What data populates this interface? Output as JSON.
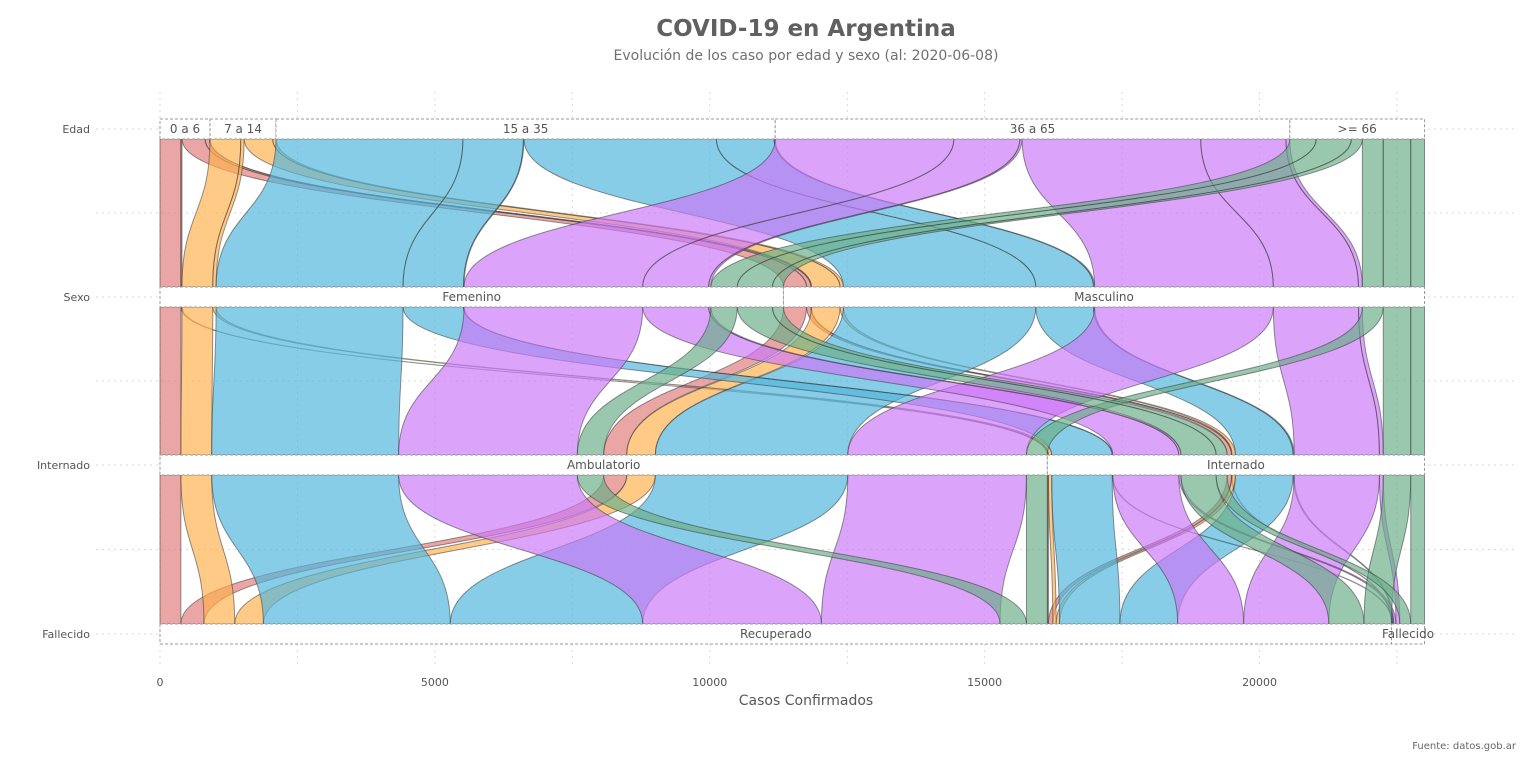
{
  "title": "COVID-19 en Argentina",
  "subtitle": "Evolución de los caso por edad y sexo (al: 2020-06-08)",
  "caption": "Fuente: datos.gob.ar",
  "colors": {
    "0 a 6": "#E07A7A",
    "7 a 14": "#FFB04D",
    "15 a 35": "#4FB6DB",
    "36 a 65": "#CB77F8",
    ">= 66": "#6AAE87"
  },
  "chart_data": {
    "type": "alluvial",
    "xlabel": "Casos Confirmados",
    "xlim": [
      0,
      23500
    ],
    "x_ticks": [
      0,
      5000,
      10000,
      15000,
      20000
    ],
    "axes": [
      "Edad",
      "Sexo",
      "Internado",
      "Fallecido"
    ],
    "axis_categories": {
      "Edad": [
        "0 a 6",
        "7 a 14",
        "15 a 35",
        "36 a 65",
        ">= 66"
      ],
      "Sexo": [
        "Femenino",
        "Masculino"
      ],
      "Internado": [
        "Ambulatorio",
        "Internado"
      ],
      "Fallecido": [
        "Recuperado",
        "Fallecido"
      ]
    },
    "flows": [
      {
        "age": "0 a 6",
        "sex": "Femenino",
        "hosp": "Ambulatorio",
        "death": "Recuperado",
        "value": 380
      },
      {
        "age": "0 a 6",
        "sex": "Masculino",
        "hosp": "Ambulatorio",
        "death": "Recuperado",
        "value": 420
      },
      {
        "age": "0 a 6",
        "sex": "Femenino",
        "hosp": "Internado",
        "death": "Recuperado",
        "value": 20
      },
      {
        "age": "0 a 6",
        "sex": "Masculino",
        "hosp": "Internado",
        "death": "Recuperado",
        "value": 80
      },
      {
        "age": "0 a 6",
        "sex": "Masculino",
        "hosp": "Internado",
        "death": "Fallecido",
        "value": 10
      },
      {
        "age": "7 a 14",
        "sex": "Femenino",
        "hosp": "Ambulatorio",
        "death": "Recuperado",
        "value": 560
      },
      {
        "age": "7 a 14",
        "sex": "Masculino",
        "hosp": "Ambulatorio",
        "death": "Recuperado",
        "value": 520
      },
      {
        "age": "7 a 14",
        "sex": "Femenino",
        "hosp": "Internado",
        "death": "Recuperado",
        "value": 60
      },
      {
        "age": "7 a 14",
        "sex": "Masculino",
        "hosp": "Internado",
        "death": "Recuperado",
        "value": 60
      },
      {
        "age": "15 a 35",
        "sex": "Femenino",
        "hosp": "Ambulatorio",
        "death": "Recuperado",
        "value": 3400
      },
      {
        "age": "15 a 35",
        "sex": "Masculino",
        "hosp": "Ambulatorio",
        "death": "Recuperado",
        "value": 3500
      },
      {
        "age": "15 a 35",
        "sex": "Femenino",
        "hosp": "Internado",
        "death": "Recuperado",
        "value": 1100
      },
      {
        "age": "15 a 35",
        "sex": "Masculino",
        "hosp": "Internado",
        "death": "Recuperado",
        "value": 1050
      },
      {
        "age": "15 a 35",
        "sex": "Femenino",
        "hosp": "Internado",
        "death": "Fallecido",
        "value": 10
      },
      {
        "age": "15 a 35",
        "sex": "Masculino",
        "hosp": "Internado",
        "death": "Fallecido",
        "value": 20
      },
      {
        "age": "36 a 65",
        "sex": "Femenino",
        "hosp": "Ambulatorio",
        "death": "Recuperado",
        "value": 3250
      },
      {
        "age": "36 a 65",
        "sex": "Masculino",
        "hosp": "Ambulatorio",
        "death": "Recuperado",
        "value": 3250
      },
      {
        "age": "36 a 65",
        "sex": "Femenino",
        "hosp": "Internado",
        "death": "Recuperado",
        "value": 1200
      },
      {
        "age": "36 a 65",
        "sex": "Masculino",
        "hosp": "Internado",
        "death": "Recuperado",
        "value": 1550
      },
      {
        "age": "36 a 65",
        "sex": "Femenino",
        "hosp": "Internado",
        "death": "Fallecido",
        "value": 40
      },
      {
        "age": "36 a 65",
        "sex": "Masculino",
        "hosp": "Internado",
        "death": "Fallecido",
        "value": 70
      },
      {
        "age": ">= 66",
        "sex": "Femenino",
        "hosp": "Ambulatorio",
        "death": "Recuperado",
        "value": 480
      },
      {
        "age": ">= 66",
        "sex": "Masculino",
        "hosp": "Ambulatorio",
        "death": "Recuperado",
        "value": 380
      },
      {
        "age": ">= 66",
        "sex": "Femenino",
        "hosp": "Internado",
        "death": "Recuperado",
        "value": 640
      },
      {
        "age": ">= 66",
        "sex": "Masculino",
        "hosp": "Internado",
        "death": "Recuperado",
        "value": 500
      },
      {
        "age": ">= 66",
        "sex": "Femenino",
        "hosp": "Internado",
        "death": "Fallecido",
        "value": 200
      },
      {
        "age": ">= 66",
        "sex": "Masculino",
        "hosp": "Internado",
        "death": "Fallecido",
        "value": 250
      }
    ]
  }
}
